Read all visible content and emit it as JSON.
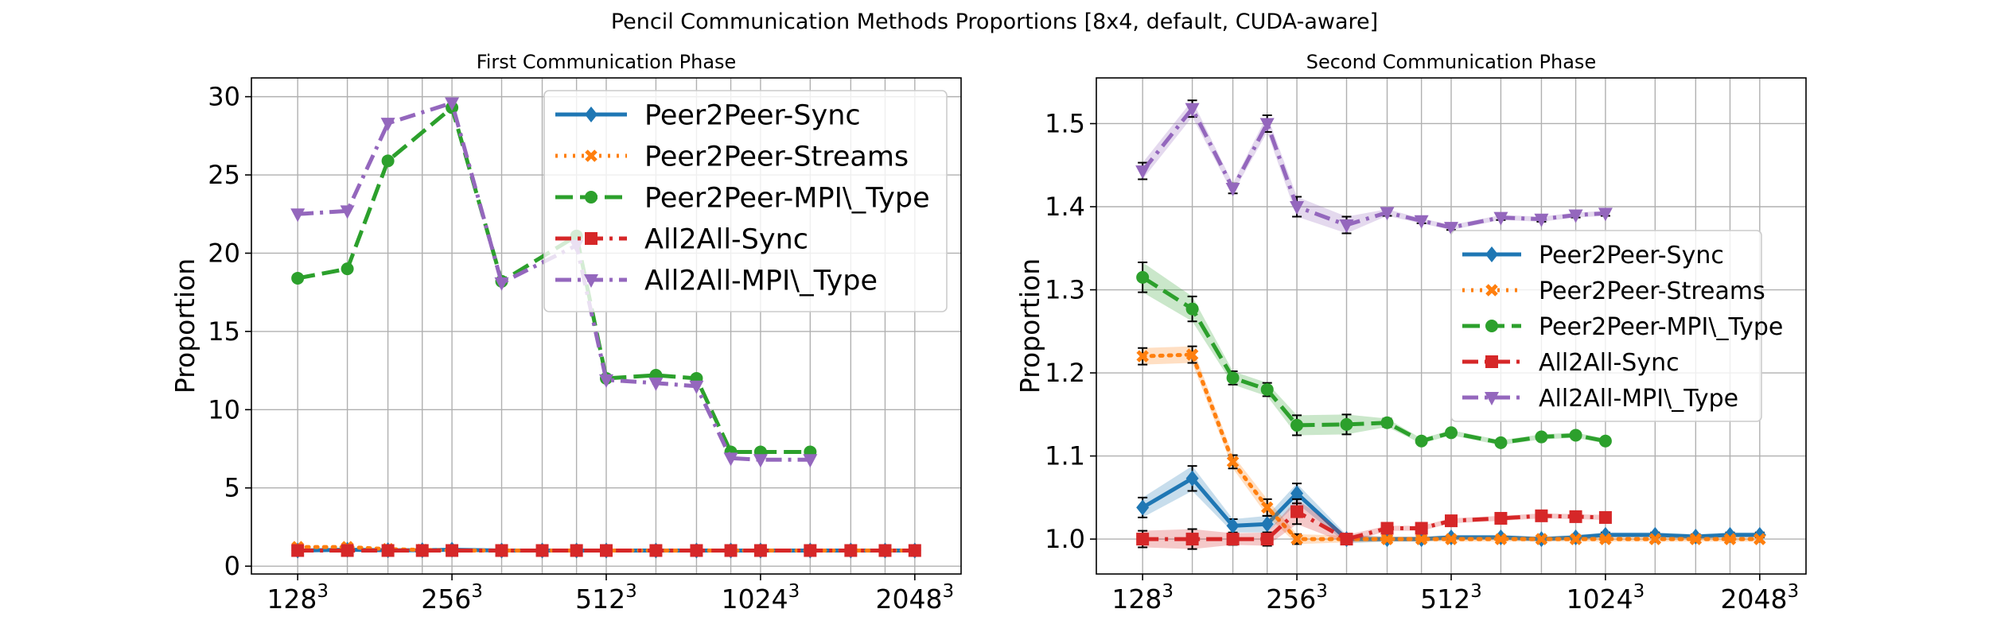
{
  "figure": {
    "title": "Pencil Communication Methods Proportions [8x4, default, CUDA-aware]"
  },
  "colors": {
    "Peer2Peer-Sync": "#1f77b4",
    "Peer2Peer-Streams": "#ff7f0e",
    "Peer2Peer-MPI\\_Type": "#2ca02c",
    "All2All-Sync": "#d62728",
    "All2All-MPI\\_Type": "#9467bd"
  },
  "chart_data": [
    {
      "type": "line",
      "title": "First Communication Phase",
      "xlabel": "",
      "ylabel": "Proportion",
      "x": [
        128,
        160,
        192,
        224,
        256,
        320,
        384,
        448,
        512,
        640,
        768,
        896,
        1024,
        1280,
        1536,
        1792,
        2048
      ],
      "x_scale": "log2",
      "xticks": [
        {
          "value": 128,
          "base": "128",
          "exp": "3"
        },
        {
          "value": 256,
          "base": "256",
          "exp": "3"
        },
        {
          "value": 512,
          "base": "512",
          "exp": "3"
        },
        {
          "value": 1024,
          "base": "1024",
          "exp": "3"
        },
        {
          "value": 2048,
          "base": "2048",
          "exp": "3"
        }
      ],
      "ylim": [
        -0.5,
        31.2
      ],
      "yticks": [
        0,
        5,
        10,
        15,
        20,
        25,
        30
      ],
      "ytick_labels": [
        "0",
        "5",
        "10",
        "15",
        "20",
        "25",
        "30"
      ],
      "grid": true,
      "legend_position": "top-right",
      "series": [
        {
          "name": "Peer2Peer-Sync",
          "marker": "diamond",
          "dash": "solid",
          "x": [
            128,
            160,
            192,
            224,
            256,
            320,
            384,
            448,
            512,
            640,
            768,
            896,
            1024,
            1280,
            1536,
            1792,
            2048
          ],
          "values": [
            1.0,
            1.05,
            1.02,
            1.02,
            1.05,
            1.0,
            1.0,
            1.0,
            1.0,
            1.0,
            1.0,
            1.0,
            1.0,
            1.0,
            1.0,
            1.0,
            1.0
          ]
        },
        {
          "name": "Peer2Peer-Streams",
          "marker": "x",
          "dash": "dotted",
          "x": [
            128,
            160,
            192,
            224,
            256,
            320,
            384,
            448,
            512,
            640,
            768,
            896,
            1024,
            1280,
            1536,
            1792,
            2048
          ],
          "values": [
            1.22,
            1.22,
            1.09,
            1.04,
            1.0,
            1.0,
            1.0,
            1.0,
            1.0,
            1.0,
            1.0,
            1.0,
            1.0,
            1.0,
            1.0,
            1.0,
            1.0
          ]
        },
        {
          "name": "Peer2Peer-MPI\\_Type",
          "marker": "circle",
          "dash": "dashed",
          "x": [
            128,
            160,
            192,
            224,
            256,
            320,
            384,
            448,
            512,
            640,
            768,
            896,
            1024,
            1280,
            1536,
            1792,
            2048
          ],
          "values": [
            18.4,
            19.0,
            25.9,
            null,
            29.3,
            18.2,
            null,
            21.1,
            12.0,
            12.2,
            12.0,
            7.3,
            7.3,
            7.3,
            null,
            null,
            null
          ]
        },
        {
          "name": "All2All-Sync",
          "marker": "square",
          "dash": "dashdot",
          "x": [
            128,
            160,
            192,
            224,
            256,
            320,
            384,
            448,
            512,
            640,
            768,
            896,
            1024,
            1280,
            1536,
            1792,
            2048
          ],
          "values": [
            1.0,
            1.0,
            1.0,
            1.0,
            1.0,
            1.0,
            1.0,
            1.0,
            1.0,
            1.0,
            1.0,
            1.0,
            1.0,
            1.0,
            1.0,
            1.0,
            1.0
          ]
        },
        {
          "name": "All2All-MPI\\_Type",
          "marker": "triangle-down",
          "dash": "dashdot",
          "x": [
            128,
            160,
            192,
            224,
            256,
            320,
            384,
            448,
            512,
            640,
            768,
            896,
            1024,
            1280,
            1536,
            1792,
            2048
          ],
          "values": [
            22.5,
            22.7,
            28.3,
            null,
            29.6,
            18.1,
            null,
            20.5,
            11.9,
            11.7,
            11.5,
            6.9,
            6.8,
            6.8,
            null,
            null,
            null
          ]
        }
      ]
    },
    {
      "type": "line",
      "title": "Second Communication Phase",
      "xlabel": "",
      "ylabel": "Proportion",
      "x_scale": "log2",
      "xticks": [
        {
          "value": 128,
          "base": "128",
          "exp": "3"
        },
        {
          "value": 256,
          "base": "256",
          "exp": "3"
        },
        {
          "value": 512,
          "base": "512",
          "exp": "3"
        },
        {
          "value": 1024,
          "base": "1024",
          "exp": "3"
        },
        {
          "value": 2048,
          "base": "2048",
          "exp": "3"
        }
      ],
      "ylim": [
        0.958,
        1.555
      ],
      "yticks": [
        1.0,
        1.1,
        1.2,
        1.3,
        1.4,
        1.5
      ],
      "ytick_labels": [
        "1.0",
        "1.1",
        "1.2",
        "1.3",
        "1.4",
        "1.5"
      ],
      "grid": true,
      "legend_position": "center-right",
      "series": [
        {
          "name": "Peer2Peer-Sync",
          "marker": "diamond",
          "dash": "solid",
          "x": [
            128,
            160,
            192,
            224,
            256,
            320,
            384,
            448,
            512,
            640,
            768,
            896,
            1024,
            1280,
            1536,
            1792,
            2048
          ],
          "values": [
            1.038,
            1.073,
            1.016,
            1.018,
            1.055,
            1.0,
            1.0,
            1.0,
            1.002,
            1.002,
            1.0,
            1.002,
            1.005,
            1.005,
            1.003,
            1.005,
            1.005
          ],
          "err": [
            0.012,
            0.015,
            0.008,
            0.01,
            0.012,
            0.005,
            0.003,
            0.003,
            0.003,
            0.003,
            0.003,
            0.003,
            0.003,
            0.003,
            0.003,
            0.003,
            0.003
          ]
        },
        {
          "name": "Peer2Peer-Streams",
          "marker": "x",
          "dash": "dotted",
          "x": [
            128,
            160,
            192,
            224,
            256,
            320,
            384,
            448,
            512,
            640,
            768,
            896,
            1024,
            1280,
            1536,
            1792,
            2048
          ],
          "values": [
            1.22,
            1.222,
            1.093,
            1.038,
            1.0,
            1.0,
            1.0,
            1.0,
            1.0,
            1.0,
            1.0,
            1.0,
            1.0,
            1.0,
            1.0,
            1.0,
            1.0
          ],
          "err": [
            0.01,
            0.01,
            0.008,
            0.01,
            0.006,
            0.004,
            0.003,
            0.003,
            0.003,
            0.003,
            0.003,
            0.003,
            0.003,
            0.003,
            0.003,
            0.003,
            0.003
          ]
        },
        {
          "name": "Peer2Peer-MPI\\_Type",
          "marker": "circle",
          "dash": "dashed",
          "x": [
            128,
            160,
            192,
            224,
            256,
            320,
            384,
            448,
            512,
            640,
            768,
            896,
            1024,
            1280,
            1536,
            1792,
            2048
          ],
          "values": [
            1.315,
            1.277,
            1.194,
            1.18,
            1.137,
            1.138,
            1.14,
            1.118,
            1.128,
            1.116,
            1.123,
            1.125,
            1.118,
            null,
            null,
            null,
            null
          ],
          "err": [
            0.018,
            0.015,
            0.008,
            0.008,
            0.012,
            0.012,
            0.005,
            0.003,
            0.003,
            0.003,
            0.003,
            0.003,
            0.003,
            0,
            0,
            0,
            0
          ]
        },
        {
          "name": "All2All-Sync",
          "marker": "square",
          "dash": "dashdot",
          "x": [
            128,
            160,
            192,
            224,
            256,
            320,
            384,
            448,
            512,
            640,
            768,
            896,
            1024,
            1280,
            1536,
            1792,
            2048
          ],
          "values": [
            1.0,
            1.0,
            1.0,
            1.0,
            1.033,
            1.0,
            1.013,
            1.013,
            1.022,
            1.025,
            1.028,
            1.027,
            1.026,
            null,
            null,
            null,
            null
          ],
          "err": [
            0.01,
            0.012,
            0.007,
            0.008,
            0.015,
            0.005,
            0.003,
            0.003,
            0.003,
            0.003,
            0.003,
            0.003,
            0.003,
            0,
            0,
            0,
            0
          ]
        },
        {
          "name": "All2All-MPI\\_Type",
          "marker": "triangle-down",
          "dash": "dashdot",
          "x": [
            128,
            160,
            192,
            224,
            256,
            320,
            384,
            448,
            512,
            640,
            768,
            896,
            1024,
            1280,
            1536,
            1792,
            2048
          ],
          "values": [
            1.443,
            1.518,
            1.422,
            1.5,
            1.4,
            1.378,
            1.393,
            1.383,
            1.375,
            1.387,
            1.385,
            1.39,
            1.392,
            null,
            null,
            null,
            null
          ],
          "err": [
            0.01,
            0.01,
            0.006,
            0.01,
            0.012,
            0.01,
            0.004,
            0.003,
            0.003,
            0.003,
            0.003,
            0.003,
            0.003,
            0,
            0,
            0,
            0
          ]
        }
      ]
    }
  ]
}
